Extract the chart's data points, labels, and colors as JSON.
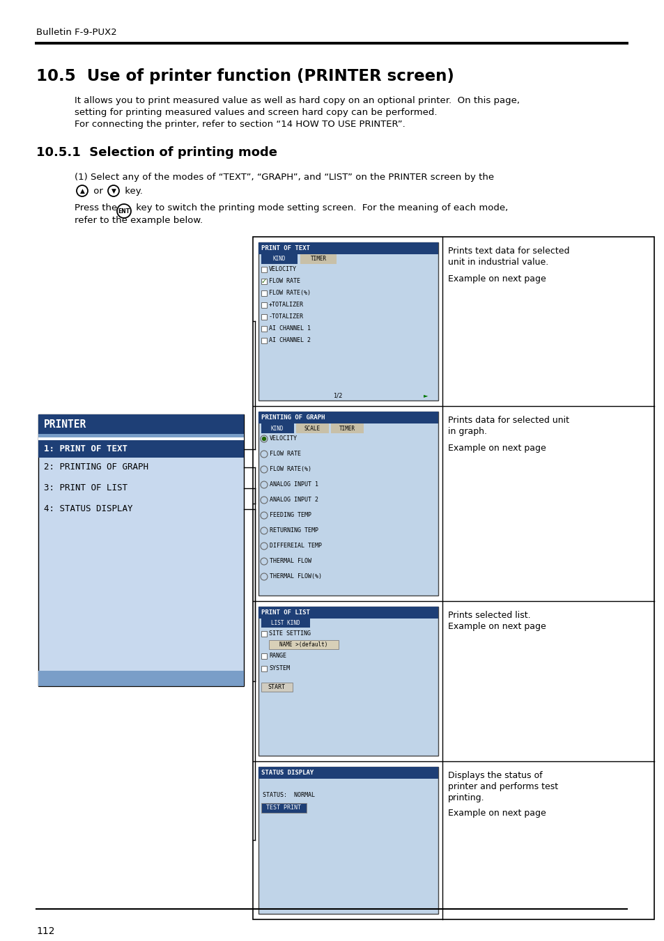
{
  "page_header": "Bulletin F-9-PUX2",
  "page_number": "112",
  "title": "10.5  Use of printer function (PRINTER screen)",
  "intro_text": [
    "It allows you to print measured value as well as hard copy on an optional printer.  On this page,",
    "setting for printing measured values and screen hard copy can be performed.",
    "For connecting the printer, refer to section “14 HOW TO USE PRINTER”."
  ],
  "section_title": "10.5.1  Selection of printing mode",
  "bg_color": "#ffffff",
  "dark_blue": "#1e3f76",
  "light_blue": "#c8d9ee",
  "screen_bg": "#c0d4e8",
  "tab_selected_bg": "#1e3f76",
  "tab_unselected_bg": "#c8c0a8",
  "printer_menu_items": [
    "1: PRINT OF TEXT",
    "2: PRINTING OF GRAPH",
    "3: PRINT OF LIST",
    "4: STATUS DISPLAY"
  ],
  "screen1_items": [
    "VELOCITY",
    "FLOW RATE",
    "FLOW RATE(%)",
    "+TOTALIZER",
    "-TOTALIZER",
    "AI CHANNEL 1",
    "AI CHANNEL 2"
  ],
  "screen2_items": [
    "VELOCITY",
    "FLOW RATE",
    "FLOW RATE(%)",
    "ANALOG INPUT 1",
    "ANALOG INPUT 2",
    "FEEDING TEMP",
    "RETURNING TEMP",
    "DIFFEREIAL TEMP",
    "THERMAL FLOW",
    "THERMAL FLOW(%)"
  ],
  "screen3_items": [
    "SITE SETTING",
    "RANGE",
    "SYSTEM"
  ]
}
